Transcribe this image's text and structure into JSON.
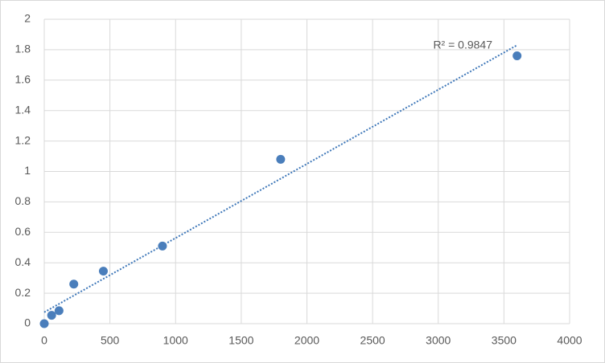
{
  "chart_data": {
    "type": "scatter",
    "series": [
      {
        "color": "#4a7ebb",
        "x": [
          0,
          56.25,
          112.5,
          225,
          450,
          900,
          1800,
          3600
        ],
        "values": [
          0,
          0.055,
          0.085,
          0.26,
          0.345,
          0.51,
          1.08,
          1.76
        ]
      }
    ],
    "trendline": {
      "color": "#3f78b9",
      "x": [
        0,
        3600
      ],
      "values": [
        0.075,
        1.83
      ]
    },
    "annotation": "R² = 0.9847",
    "xlim": [
      0,
      4000
    ],
    "xticks": [
      0,
      500,
      1000,
      1500,
      2000,
      2500,
      3000,
      3500,
      4000
    ],
    "ylim": [
      0,
      2
    ],
    "yticks": [
      0,
      0.2,
      0.4,
      0.6,
      0.8,
      1,
      1.2,
      1.4,
      1.6,
      1.8,
      2
    ],
    "grid": true
  }
}
